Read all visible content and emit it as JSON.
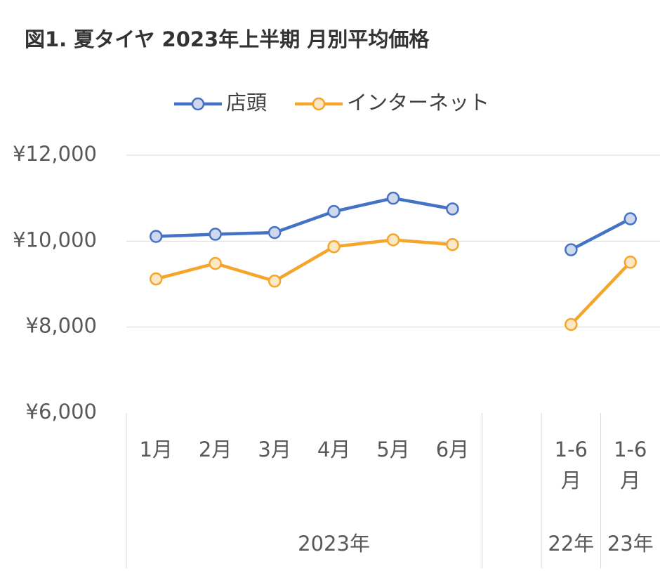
{
  "chart_data": {
    "type": "line",
    "title": "図1. 夏タイヤ 2023年上半期 月別平均価格",
    "categories": [
      "1月",
      "2月",
      "3月",
      "4月",
      "5月",
      "6月",
      null,
      "1-6月",
      "1-6月"
    ],
    "groups": [
      {
        "label": "2023年",
        "span": 7
      },
      {
        "label": "22年",
        "span": 1
      },
      {
        "label": "23年",
        "span": 1
      }
    ],
    "series": [
      {
        "name": "店頭",
        "color": "#4472c4",
        "marker_fill": "#d0d8ee",
        "values": [
          10110,
          10160,
          10200,
          10690,
          11000,
          10750,
          null,
          9800,
          10520
        ]
      },
      {
        "name": "インターネット",
        "color": "#f5a52a",
        "marker_fill": "#fde8c6",
        "values": [
          9120,
          9480,
          9070,
          9870,
          10030,
          9920,
          null,
          8060,
          9510
        ]
      }
    ],
    "ylim": [
      6000,
      12000
    ],
    "yticks": [
      {
        "value": 6000,
        "label": "¥6,000"
      },
      {
        "value": 8000,
        "label": "¥8,000"
      },
      {
        "value": 10000,
        "label": "¥10,000"
      },
      {
        "value": 12000,
        "label": "¥12,000"
      }
    ],
    "grid": true,
    "legend": "top"
  }
}
